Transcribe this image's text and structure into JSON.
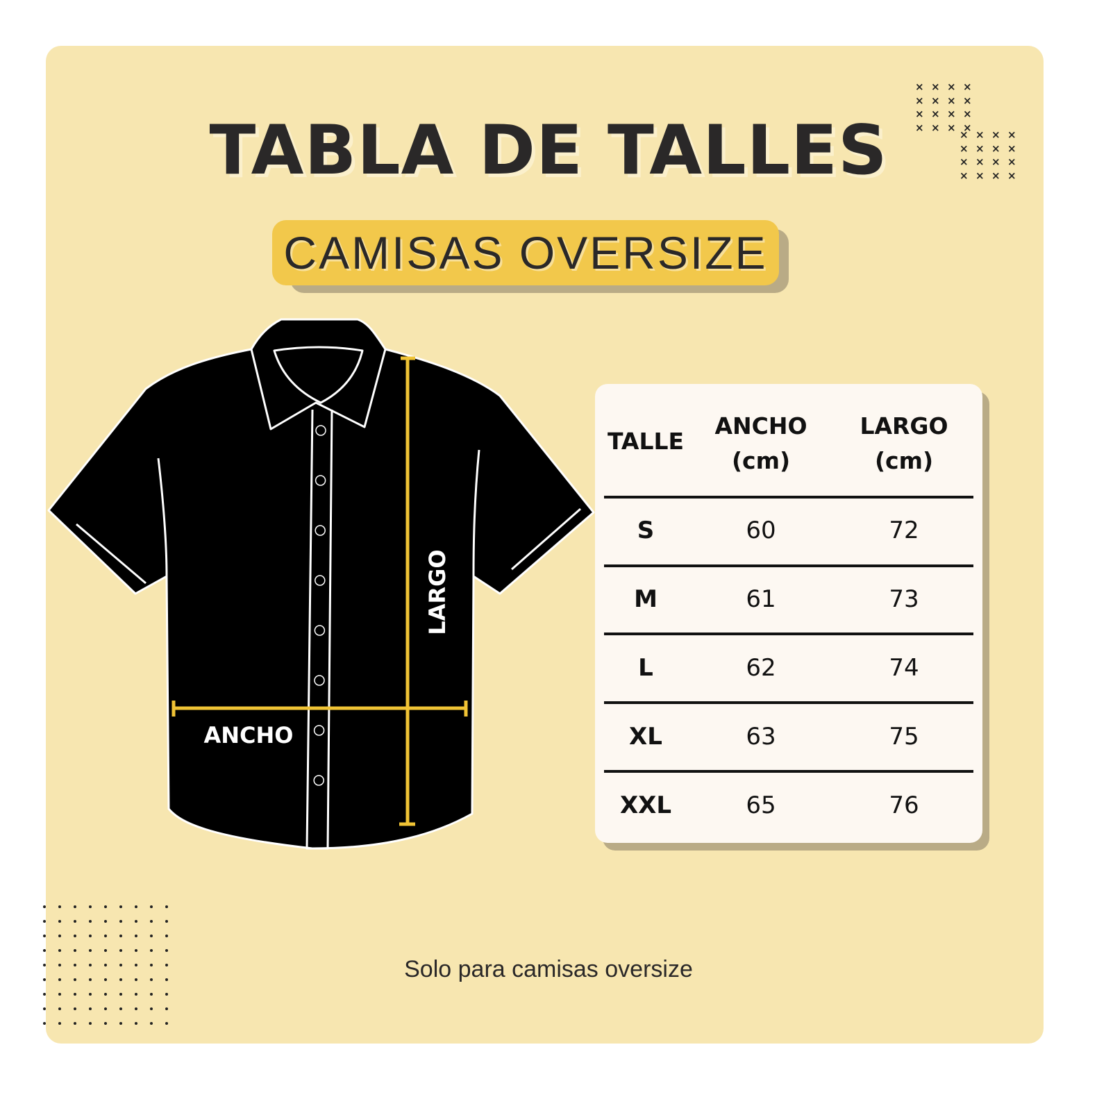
{
  "title": "TABLA DE TALLES",
  "subtitle": "CAMISAS OVERSIZE",
  "diagram": {
    "width_label": "ANCHO",
    "length_label": "LARGO",
    "measure_color": "#f0c335",
    "shirt_color": "#000000"
  },
  "table": {
    "headers": [
      "TALLE",
      "ANCHO\n(cm)",
      "LARGO\n(cm)"
    ],
    "rows": [
      {
        "size": "S",
        "width": "60",
        "length": "72"
      },
      {
        "size": "M",
        "width": "61",
        "length": "73"
      },
      {
        "size": "L",
        "width": "62",
        "length": "74"
      },
      {
        "size": "XL",
        "width": "63",
        "length": "75"
      },
      {
        "size": "XXL",
        "width": "65",
        "length": "76"
      }
    ]
  },
  "footer": "Solo para camisas oversize",
  "colors": {
    "background": "#f7e6b0",
    "badge": "#f2c84b",
    "text": "#2a2828"
  }
}
